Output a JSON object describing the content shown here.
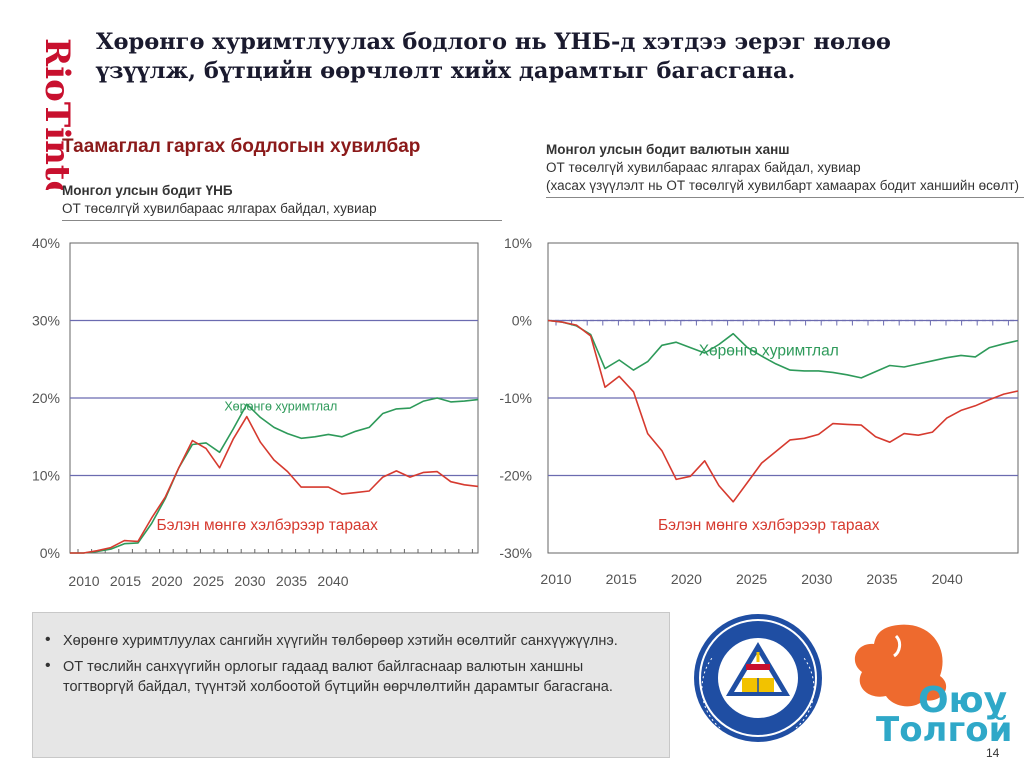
{
  "brand": {
    "rio_tinto": "RioTinto",
    "oyu_line1": "Оюу",
    "oyu_line2": "Толгой",
    "school_logo": "school-emblem-icon",
    "colors": {
      "rio_red": "#c8102e",
      "oyu_orange": "#ee6a2e",
      "oyu_blue": "#2fa8c8"
    }
  },
  "title": "Хөрөнгө хуримтлуулах бодлого нь ҮНБ-д хэтдээ эерэг нөлөө үзүүлж, бүтцийн өөрчлөлт хийх дарамтыг багасгана.",
  "section_title": "Таамаглал гаргах бодлогын хувилбар",
  "page_number": "14",
  "bullets": [
    "Хөрөнгө хуримтлуулах сангийн хүүгийн төлбөрөөр хэтийн өсөлтийг санхүүжүүлнэ.",
    "ОТ төслийн санхүүгийн орлогыг гадаад валют байлгаснаар валютын ханшны тогтворгүй байдал, түүнтэй холбоотой бүтцийн өөрчлөлтийн дарамтыг багасгана."
  ],
  "chart_data": [
    {
      "type": "line",
      "title": "Монгол улсын бодит ҮНБ",
      "subtitle": "ОТ төсөлгүй хувилбараас ялгарах байдал, хувиар",
      "xlabel": "",
      "ylabel": "",
      "xlim": [
        2010,
        2040
      ],
      "ylim": [
        0,
        40
      ],
      "x_ticks": [
        "2010",
        "2015",
        "2020",
        "2025",
        "2030",
        "2035",
        "2040"
      ],
      "y_ticks": [
        "0%",
        "10%",
        "20%",
        "30%",
        "40%"
      ],
      "grid": "horizontal",
      "series": [
        {
          "name": "Хөрөнгө хуримтлал",
          "color": "#2e9a5a",
          "label_pos": [
            2025.5,
            18.4
          ],
          "x": [
            2010,
            2011,
            2012,
            2013,
            2014,
            2015,
            2016,
            2017,
            2018,
            2019,
            2020,
            2021,
            2022,
            2023,
            2024,
            2025,
            2026,
            2027,
            2028,
            2029,
            2030,
            2031,
            2032,
            2033,
            2034,
            2035,
            2036,
            2037,
            2038,
            2039,
            2040
          ],
          "values": [
            0,
            0,
            0.2,
            0.5,
            1.2,
            1.3,
            3.8,
            7.0,
            11.0,
            14.0,
            14.2,
            13.0,
            16.0,
            19.2,
            17.5,
            16.2,
            15.4,
            14.8,
            15.0,
            15.3,
            15.0,
            15.7,
            16.2,
            18.0,
            18.6,
            18.7,
            19.6,
            20.0,
            19.5,
            19.6,
            19.8
          ]
        },
        {
          "name": "Бэлэн мөнгө хэлбэрээр тараах",
          "color": "#d63a2f",
          "label_pos": [
            2024.5,
            3.0
          ],
          "x": [
            2010,
            2011,
            2012,
            2013,
            2014,
            2015,
            2016,
            2017,
            2018,
            2019,
            2020,
            2021,
            2022,
            2023,
            2024,
            2025,
            2026,
            2027,
            2028,
            2029,
            2030,
            2031,
            2032,
            2033,
            2034,
            2035,
            2036,
            2037,
            2038,
            2039,
            2040
          ],
          "values": [
            0,
            0,
            0.3,
            0.7,
            1.6,
            1.5,
            4.5,
            7.2,
            11.0,
            14.5,
            13.5,
            11.0,
            14.7,
            17.6,
            14.3,
            12.0,
            10.5,
            8.5,
            8.5,
            8.5,
            7.6,
            7.8,
            8.0,
            9.8,
            10.6,
            9.8,
            10.4,
            10.5,
            9.2,
            8.8,
            8.6
          ]
        }
      ]
    },
    {
      "type": "line",
      "title": "Монгол улсын бодит валютын ханш",
      "subtitle": "ОТ төсөлгүй хувилбараас ялгарах байдал, хувиар",
      "note": "(хасах үзүүлэлт нь ОТ төсөлгүй хувилбарт хамаарах бодит ханшийн өсөлт)",
      "xlabel": "",
      "ylabel": "",
      "xlim": [
        2010,
        2043
      ],
      "ylim": [
        -30,
        10
      ],
      "x_ticks": [
        "2010",
        "2015",
        "2020",
        "2025",
        "2030",
        "2035",
        "2040"
      ],
      "y_ticks": [
        "-30%",
        "-20%",
        "-10%",
        "0%",
        "10%"
      ],
      "grid": "horizontal",
      "series": [
        {
          "name": "Хөрөнгө хуримтлал",
          "color": "#2e9a5a",
          "label_pos": [
            2025.5,
            -4.5
          ],
          "x": [
            2010,
            2011,
            2012,
            2013,
            2014,
            2015,
            2016,
            2017,
            2018,
            2019,
            2020,
            2021,
            2022,
            2023,
            2024,
            2025,
            2026,
            2027,
            2028,
            2029,
            2030,
            2031,
            2032,
            2033,
            2034,
            2035,
            2036,
            2037,
            2038,
            2039,
            2040,
            2041,
            2042,
            2043
          ],
          "values": [
            0,
            -0.2,
            -0.7,
            -1.8,
            -6.2,
            -5.1,
            -6.4,
            -5.3,
            -3.2,
            -2.8,
            -3.5,
            -4.2,
            -3.1,
            -1.7,
            -3.5,
            -4.6,
            -5.6,
            -6.4,
            -6.5,
            -6.5,
            -6.7,
            -7.0,
            -7.4,
            -6.6,
            -5.8,
            -6.0,
            -5.6,
            -5.2,
            -4.8,
            -4.5,
            -4.7,
            -3.5,
            -3.0,
            -2.6
          ]
        },
        {
          "name": "Бэлэн мөнгө хэлбэрээр тараах",
          "color": "#d63a2f",
          "label_pos": [
            2025.5,
            -27.0
          ],
          "x": [
            2010,
            2011,
            2012,
            2013,
            2014,
            2015,
            2016,
            2017,
            2018,
            2019,
            2020,
            2021,
            2022,
            2023,
            2024,
            2025,
            2026,
            2027,
            2028,
            2029,
            2030,
            2031,
            2032,
            2033,
            2034,
            2035,
            2036,
            2037,
            2038,
            2039,
            2040,
            2041,
            2042,
            2043
          ],
          "values": [
            0,
            -0.2,
            -0.6,
            -2.0,
            -8.6,
            -7.2,
            -9.2,
            -14.6,
            -16.8,
            -20.5,
            -20.1,
            -18.1,
            -21.3,
            -23.4,
            -20.9,
            -18.4,
            -16.9,
            -15.4,
            -15.2,
            -14.7,
            -13.3,
            -13.4,
            -13.5,
            -15.0,
            -15.7,
            -14.6,
            -14.8,
            -14.4,
            -12.6,
            -11.6,
            -11.0,
            -10.2,
            -9.5,
            -9.1
          ]
        }
      ]
    }
  ]
}
